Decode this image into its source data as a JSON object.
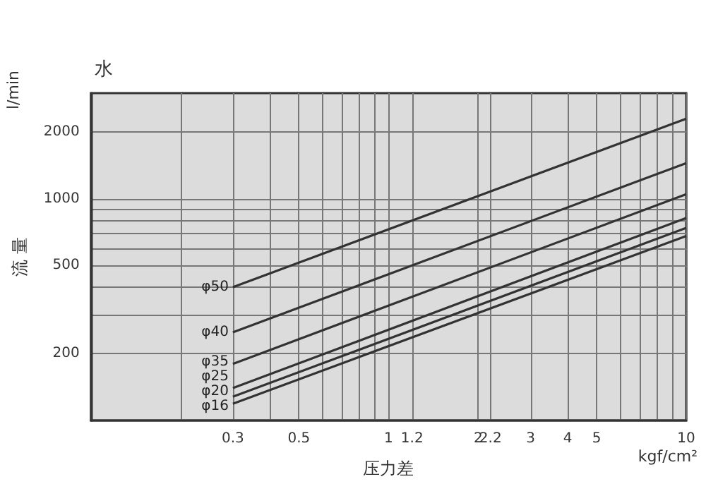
{
  "chart_data": {
    "type": "line",
    "title": "水",
    "xlabel": "压力差",
    "ylabel": "流 量",
    "annotations": [
      "l/min",
      "kgf/cm²"
    ],
    "log": "xy",
    "grid": true,
    "legend": false,
    "marker": "none",
    "line_style": "solid",
    "xlim": [
      0.1,
      10
    ],
    "ylim": [
      100,
      3000
    ],
    "xticks": [
      {
        "value": 0.2,
        "label": null
      },
      0.3,
      {
        "value": 0.4,
        "label": null
      },
      0.5,
      {
        "value": 0.6,
        "label": null
      },
      {
        "value": 0.7,
        "label": null
      },
      {
        "value": 0.8,
        "label": null
      },
      {
        "value": 0.9,
        "label": null
      },
      1,
      1.2,
      2,
      2.2,
      3,
      4,
      5,
      {
        "value": 6,
        "label": null
      },
      {
        "value": 7,
        "label": null
      },
      {
        "value": 8,
        "label": null
      },
      {
        "value": 9,
        "label": null
      },
      10
    ],
    "yticks": [
      200,
      {
        "value": 300,
        "label": null
      },
      {
        "value": 400,
        "label": null
      },
      500,
      {
        "value": 600,
        "label": null
      },
      {
        "value": 700,
        "label": null
      },
      {
        "value": 800,
        "label": null
      },
      {
        "value": 900,
        "label": null
      },
      1000,
      2000
    ],
    "x": [
      0.3,
      10
    ],
    "series": [
      {
        "name": "φ50",
        "color": "#333333",
        "values": [
          400,
          2300
        ]
      },
      {
        "name": "φ40",
        "color": "#333333",
        "values": [
          250,
          1450
        ]
      },
      {
        "name": "φ35",
        "color": "#333333",
        "values": [
          180,
          1050
        ]
      },
      {
        "name": "φ25",
        "color": "#333333",
        "values": [
          140,
          820
        ]
      },
      {
        "name": "φ20",
        "color": "#333333",
        "values": [
          128,
          740
        ]
      },
      {
        "name": "φ16",
        "color": "#333333",
        "values": [
          119,
          680
        ]
      }
    ]
  }
}
